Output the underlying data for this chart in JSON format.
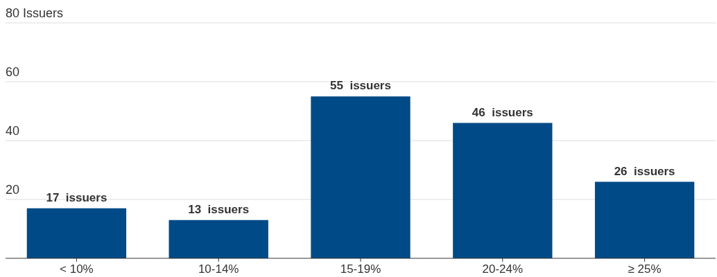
{
  "chart_data": {
    "type": "bar",
    "categories": [
      "< 10%",
      "10-14%",
      "15-19%",
      "20-24%",
      "≥ 25%"
    ],
    "values": [
      17,
      13,
      55,
      46,
      26
    ],
    "value_labels": [
      "17  issuers",
      "13  issuers",
      "55  issuers",
      "46  issuers",
      "26  issuers"
    ],
    "color": "#004b87",
    "ylim": [
      0,
      80
    ],
    "yticks": [
      20,
      40,
      60,
      {
        "value": 80,
        "label": "80 Issuers"
      }
    ],
    "grid": "y"
  }
}
